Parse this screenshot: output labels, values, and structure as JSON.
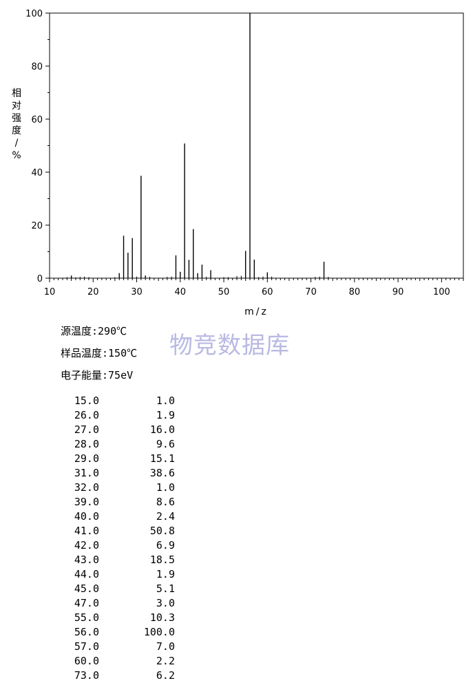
{
  "chart_data": {
    "type": "bar",
    "xlabel": "m/z",
    "ylabel": "相对强度/%",
    "xlim": [
      10,
      105
    ],
    "ylim": [
      0,
      100
    ],
    "x_ticks": [
      10,
      20,
      30,
      40,
      50,
      60,
      70,
      80,
      90,
      100
    ],
    "y_ticks": [
      0,
      20,
      40,
      60,
      80,
      100
    ],
    "grid": false,
    "peaks": [
      {
        "mz": 15,
        "intensity": 1.0
      },
      {
        "mz": 26,
        "intensity": 1.9
      },
      {
        "mz": 27,
        "intensity": 16.0
      },
      {
        "mz": 28,
        "intensity": 9.6
      },
      {
        "mz": 29,
        "intensity": 15.1
      },
      {
        "mz": 31,
        "intensity": 38.6
      },
      {
        "mz": 32,
        "intensity": 1.0
      },
      {
        "mz": 39,
        "intensity": 8.6
      },
      {
        "mz": 40,
        "intensity": 2.4
      },
      {
        "mz": 41,
        "intensity": 50.8
      },
      {
        "mz": 42,
        "intensity": 6.9
      },
      {
        "mz": 43,
        "intensity": 18.5
      },
      {
        "mz": 44,
        "intensity": 1.9
      },
      {
        "mz": 45,
        "intensity": 5.1
      },
      {
        "mz": 47,
        "intensity": 3.0
      },
      {
        "mz": 55,
        "intensity": 10.3
      },
      {
        "mz": 56,
        "intensity": 100.0
      },
      {
        "mz": 57,
        "intensity": 7.0
      },
      {
        "mz": 60,
        "intensity": 2.2
      },
      {
        "mz": 73,
        "intensity": 6.2
      }
    ],
    "minor_peaks": [
      {
        "mz": 14,
        "intensity": 0.4
      },
      {
        "mz": 16,
        "intensity": 0.3
      },
      {
        "mz": 17,
        "intensity": 0.5
      },
      {
        "mz": 18,
        "intensity": 0.6
      },
      {
        "mz": 19,
        "intensity": 0.4
      },
      {
        "mz": 25,
        "intensity": 0.4
      },
      {
        "mz": 30,
        "intensity": 0.6
      },
      {
        "mz": 33,
        "intensity": 0.5
      },
      {
        "mz": 37,
        "intensity": 0.5
      },
      {
        "mz": 38,
        "intensity": 0.6
      },
      {
        "mz": 46,
        "intensity": 0.5
      },
      {
        "mz": 50,
        "intensity": 0.4
      },
      {
        "mz": 51,
        "intensity": 0.4
      },
      {
        "mz": 53,
        "intensity": 0.8
      },
      {
        "mz": 54,
        "intensity": 0.9
      },
      {
        "mz": 58,
        "intensity": 0.4
      },
      {
        "mz": 59,
        "intensity": 0.6
      },
      {
        "mz": 61,
        "intensity": 0.6
      },
      {
        "mz": 71,
        "intensity": 0.5
      },
      {
        "mz": 72,
        "intensity": 0.6
      },
      {
        "mz": 74,
        "intensity": 0.5
      }
    ]
  },
  "watermark": "物竞数据库",
  "conditions": {
    "source_temp": "源温度:290℃",
    "sample_temp": "样品温度:150℃",
    "electron_energy": "电子能量:75eV"
  },
  "peak_table": [
    {
      "mz": "15.0",
      "intensity": "1.0"
    },
    {
      "mz": "26.0",
      "intensity": "1.9"
    },
    {
      "mz": "27.0",
      "intensity": "16.0"
    },
    {
      "mz": "28.0",
      "intensity": "9.6"
    },
    {
      "mz": "29.0",
      "intensity": "15.1"
    },
    {
      "mz": "31.0",
      "intensity": "38.6"
    },
    {
      "mz": "32.0",
      "intensity": "1.0"
    },
    {
      "mz": "39.0",
      "intensity": "8.6"
    },
    {
      "mz": "40.0",
      "intensity": "2.4"
    },
    {
      "mz": "41.0",
      "intensity": "50.8"
    },
    {
      "mz": "42.0",
      "intensity": "6.9"
    },
    {
      "mz": "43.0",
      "intensity": "18.5"
    },
    {
      "mz": "44.0",
      "intensity": "1.9"
    },
    {
      "mz": "45.0",
      "intensity": "5.1"
    },
    {
      "mz": "47.0",
      "intensity": "3.0"
    },
    {
      "mz": "55.0",
      "intensity": "10.3"
    },
    {
      "mz": "56.0",
      "intensity": "100.0"
    },
    {
      "mz": "57.0",
      "intensity": "7.0"
    },
    {
      "mz": "60.0",
      "intensity": "2.2"
    },
    {
      "mz": "73.0",
      "intensity": "6.2"
    }
  ]
}
